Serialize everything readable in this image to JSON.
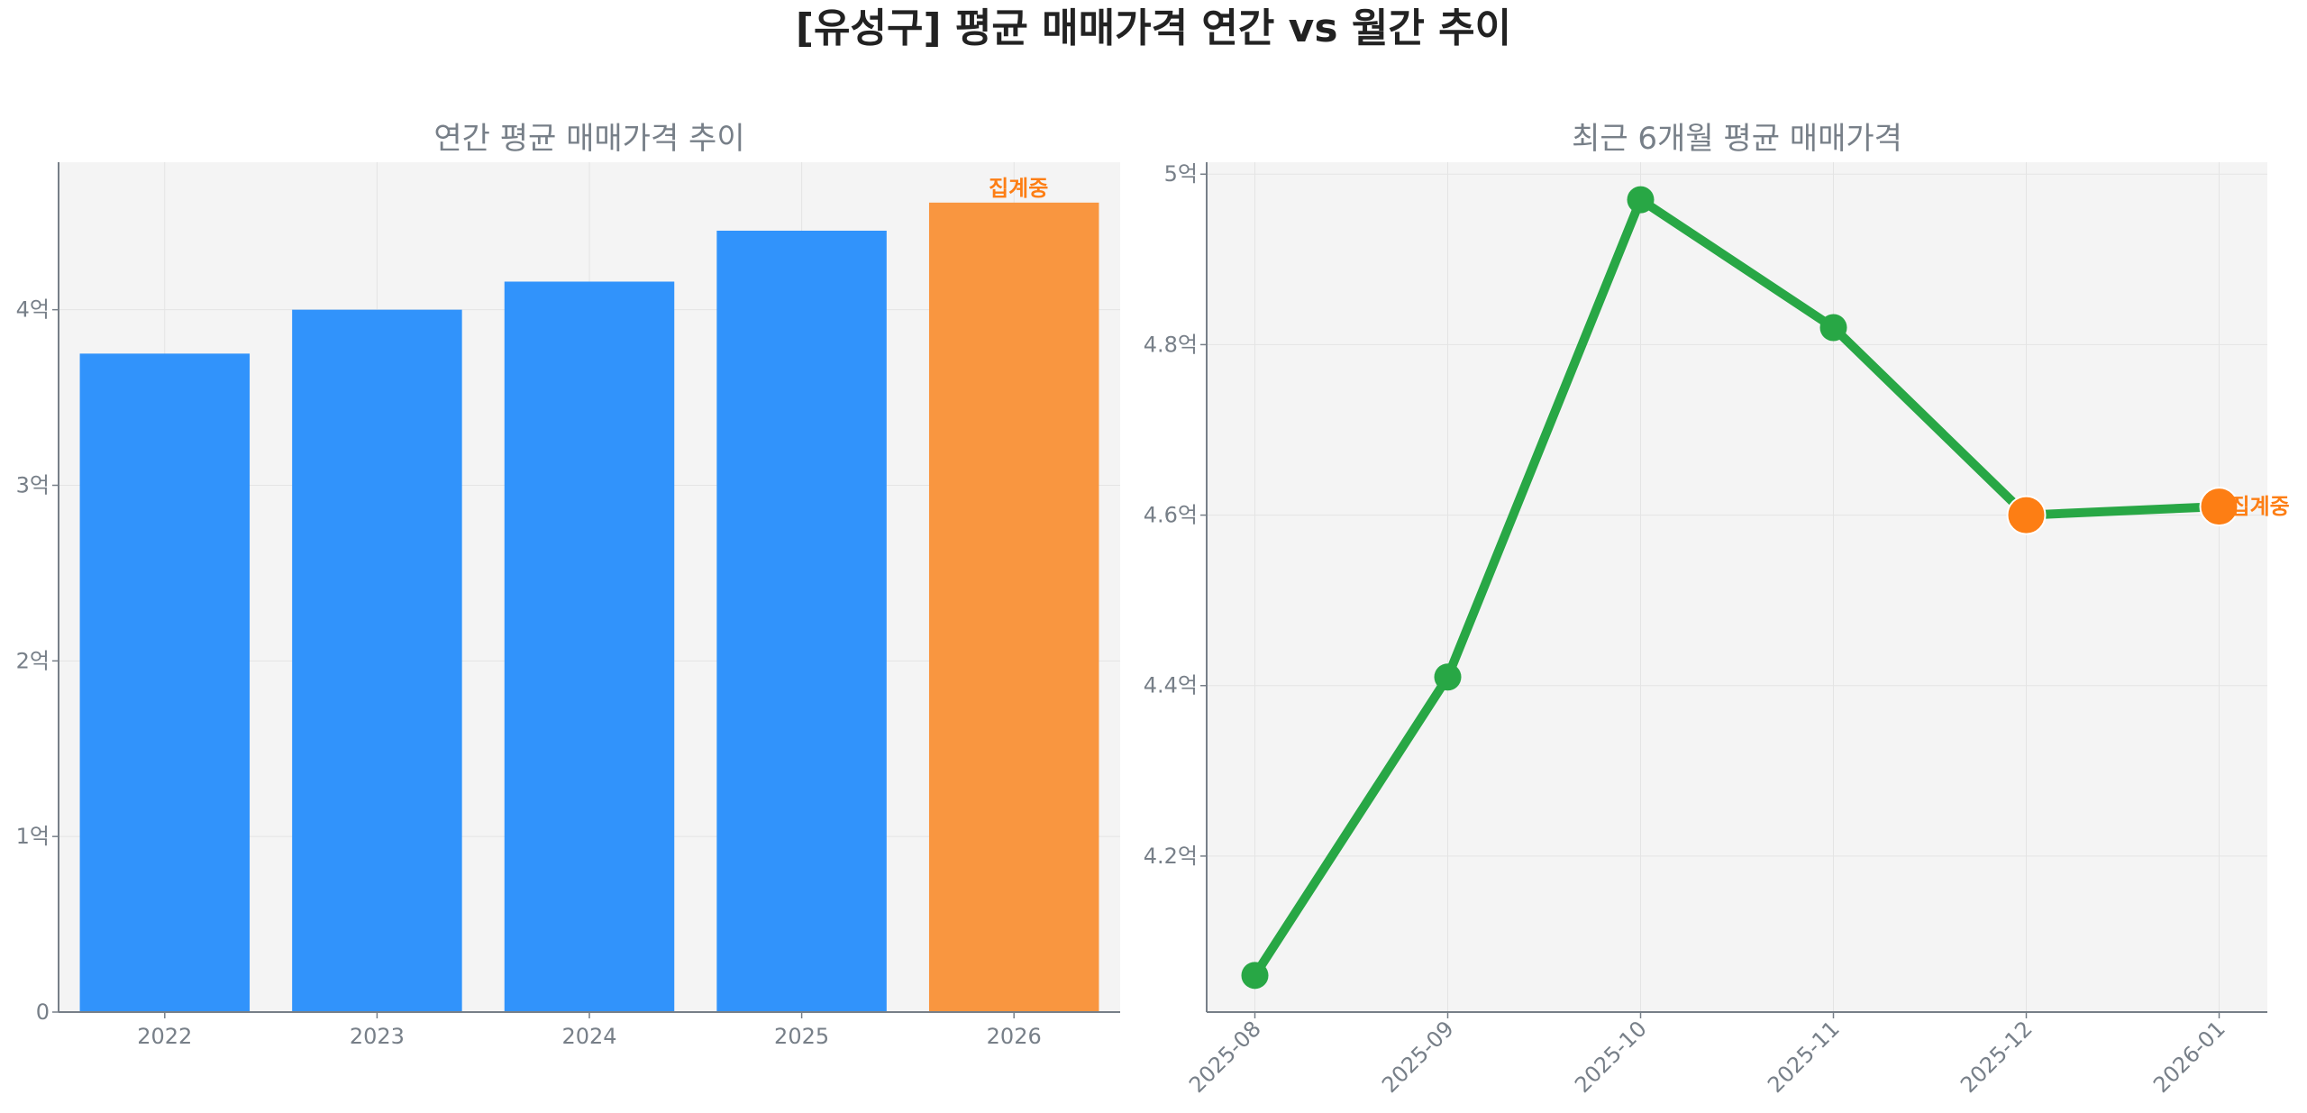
{
  "title": "[유성구] 평균 매매가격 연간 vs 월간 추이",
  "colors": {
    "bar": "#3193fb",
    "bar_partial": "#f99640",
    "line": "#28a745",
    "marker_partial": "#fd7e14",
    "annotation": "#fd7e14",
    "plot_bg": "#f4f4f4",
    "grid": "#e4e4e4"
  },
  "chart_data": [
    {
      "type": "bar",
      "title": "연간 평균 매매가격 추이",
      "categories": [
        "2022",
        "2023",
        "2024",
        "2025",
        "2026"
      ],
      "values": [
        3.75,
        4.0,
        4.16,
        4.45,
        4.61
      ],
      "unit": "억",
      "yticks": [
        0,
        1,
        2,
        3,
        4
      ],
      "ytick_labels": [
        "0",
        "1억",
        "2억",
        "3억",
        "4억"
      ],
      "ylim": [
        0,
        4.84
      ],
      "grid": true,
      "partial_category": "2026",
      "annotation": {
        "category": "2026",
        "text": "집계중"
      }
    },
    {
      "type": "line",
      "title": "최근 6개월 평균 매매가격",
      "categories": [
        "2025-08",
        "2025-09",
        "2025-10",
        "2025-11",
        "2025-12",
        "2026-01"
      ],
      "values": [
        4.06,
        4.41,
        4.97,
        4.82,
        4.6,
        4.61
      ],
      "unit": "억",
      "yticks": [
        4.2,
        4.4,
        4.6,
        4.8,
        5.0
      ],
      "ytick_labels": [
        "4.2억",
        "4.4억",
        "4.6억",
        "4.8억",
        "5억"
      ],
      "ylim": [
        4.017,
        5.014
      ],
      "grid": true,
      "highlighted_categories": [
        "2025-12",
        "2026-01"
      ],
      "annotation": {
        "category": "2026-01",
        "text": "집계중"
      }
    }
  ]
}
